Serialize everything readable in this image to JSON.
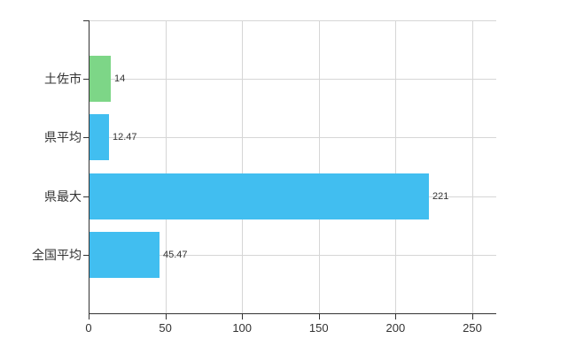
{
  "chart_data": {
    "type": "bar",
    "orientation": "horizontal",
    "title": "",
    "categories": [
      "土佐市",
      "県平均",
      "県最大",
      "全国平均"
    ],
    "values": [
      14,
      12.47,
      221,
      45.47
    ],
    "value_labels": [
      "14",
      "12.47",
      "221",
      "45.47"
    ],
    "bar_colors": [
      "#7dd687",
      "#41bef0",
      "#41bef0",
      "#41bef0"
    ],
    "x_ticks": [
      0,
      50,
      100,
      150,
      200,
      250
    ],
    "x_tick_labels": [
      "0",
      "50",
      "100",
      "150",
      "200",
      "250"
    ],
    "xlim": [
      0,
      265.6
    ],
    "grid": true,
    "legend": "none",
    "colors": {
      "bar_blue": "#41bef0",
      "bar_green": "#7dd687",
      "gridline": "#d6d6d6",
      "axis": "#333333",
      "text": "#333333",
      "background": "#ffffff"
    }
  }
}
